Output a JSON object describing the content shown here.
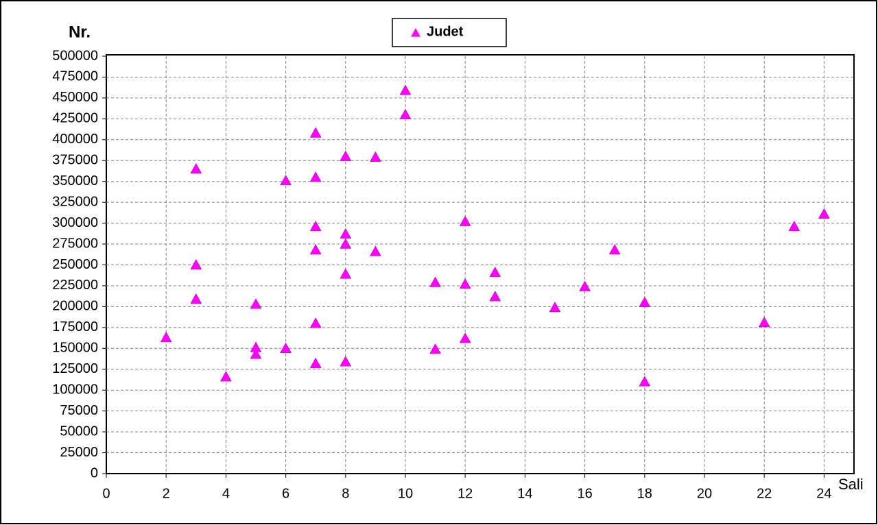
{
  "chart_data": {
    "type": "scatter",
    "xlabel": "Sali",
    "ylabel": "Nr.",
    "x": [
      2,
      3,
      3,
      3,
      4,
      5,
      5,
      5,
      6,
      6,
      7,
      7,
      7,
      7,
      7,
      7,
      8,
      8,
      8,
      8,
      8,
      9,
      9,
      10,
      10,
      11,
      11,
      12,
      12,
      12,
      13,
      13,
      15,
      16,
      17,
      18,
      18,
      22,
      23,
      24
    ],
    "series": [
      {
        "name": "Judet",
        "color": "#ff00ff",
        "values": [
          163000,
          365000,
          250000,
          209000,
          116000,
          203000,
          151000,
          143000,
          351000,
          150000,
          408000,
          355000,
          296000,
          268000,
          180000,
          132000,
          380000,
          287000,
          275000,
          239000,
          134000,
          379000,
          266000,
          459000,
          430000,
          229000,
          149000,
          302000,
          227000,
          162000,
          241000,
          212000,
          199000,
          224000,
          268000,
          205000,
          110000,
          181000,
          296000,
          311000
        ]
      }
    ],
    "xlim": [
      0,
      25
    ],
    "xticks": [
      0,
      2,
      4,
      6,
      8,
      10,
      12,
      14,
      16,
      18,
      20,
      22,
      24
    ],
    "ylim": [
      0,
      500000
    ],
    "yticks": [
      0,
      25000,
      50000,
      75000,
      100000,
      125000,
      150000,
      175000,
      200000,
      225000,
      250000,
      275000,
      300000,
      325000,
      350000,
      375000,
      400000,
      425000,
      450000,
      475000,
      500000
    ],
    "grid": true,
    "legend": "top"
  }
}
